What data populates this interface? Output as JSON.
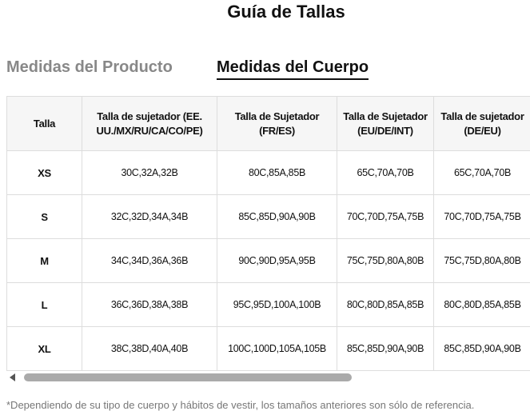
{
  "header": {
    "title": "Guía de Tallas"
  },
  "tabs": [
    "Medidas del Producto",
    "Medidas del Cuerpo"
  ],
  "table": {
    "headers": [
      "Talla",
      "Talla de sujetador (EE. UU./MX/RU/CA/CO/PE)",
      "Talla de Sujetador (FR/ES)",
      "Talla de Sujetador (EU/DE/INT)",
      "Talla de sujetador (DE/EU)"
    ],
    "rows": [
      [
        "XS",
        "30C,32A,32B",
        "80C,85A,85B",
        "65C,70A,70B",
        "65C,70A,70B"
      ],
      [
        "S",
        "32C,32D,34A,34B",
        "85C,85D,90A,90B",
        "70C,70D,75A,75B",
        "70C,70D,75A,75B"
      ],
      [
        "M",
        "34C,34D,36A,36B",
        "90C,90D,95A,95B",
        "75C,75D,80A,80B",
        "75C,75D,80A,80B"
      ],
      [
        "L",
        "36C,36D,38A,38B",
        "95C,95D,100A,100B",
        "80C,80D,85A,85B",
        "80C,80D,85A,85B"
      ],
      [
        "XL",
        "38C,38D,40A,40B",
        "100C,100D,105A,105B",
        "85C,85D,90A,90B",
        "85C,85D,90A,90B"
      ]
    ]
  },
  "footnote": "*Dependiendo de su tipo de cuerpo y hábitos de vestir, los tamaños anteriores son sólo de referencia."
}
